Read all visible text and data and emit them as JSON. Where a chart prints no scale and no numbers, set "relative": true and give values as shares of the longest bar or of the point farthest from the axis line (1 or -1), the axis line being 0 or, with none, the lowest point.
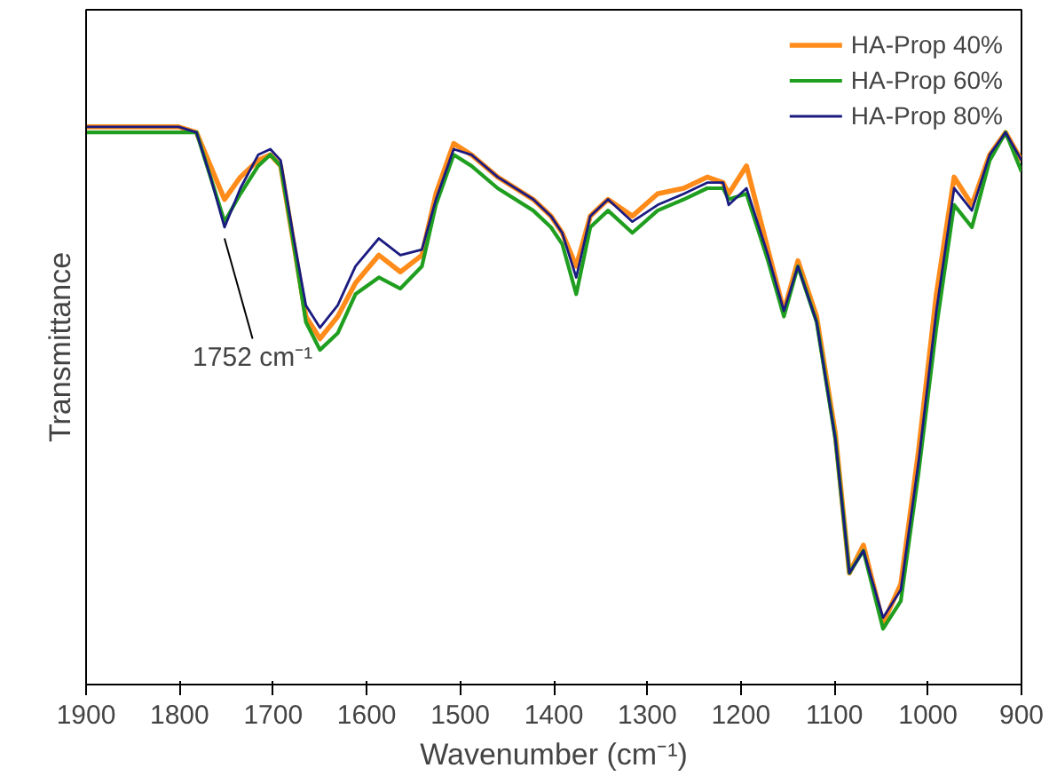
{
  "chart_data": {
    "type": "line",
    "relative": true,
    "xlabel": "Wavenumber (cm⁻¹)",
    "ylabel": "Transmittance",
    "x": [
      1900,
      1801,
      1782,
      1767,
      1752,
      1735,
      1716,
      1703,
      1692,
      1678,
      1665,
      1650,
      1631,
      1612,
      1587,
      1564,
      1541,
      1526,
      1507,
      1488,
      1460,
      1422,
      1403,
      1391,
      1376,
      1361,
      1342,
      1316,
      1289,
      1261,
      1236,
      1219,
      1213,
      1194,
      1171,
      1154,
      1139,
      1119,
      1099,
      1084,
      1069,
      1048,
      1029,
      1010,
      991,
      972,
      953,
      934,
      917,
      900
    ],
    "series": [
      {
        "name": "HA-Prop 40%",
        "color": "#ff8c1a",
        "values": [
          1,
          1,
          0.99,
          0.93,
          0.87,
          0.91,
          0.94,
          0.95,
          0.93,
          0.79,
          0.66,
          0.62,
          0.66,
          0.72,
          0.77,
          0.74,
          0.77,
          0.88,
          0.97,
          0.95,
          0.91,
          0.87,
          0.84,
          0.81,
          0.75,
          0.84,
          0.87,
          0.84,
          0.88,
          0.89,
          0.91,
          0.9,
          0.88,
          0.93,
          0.78,
          0.67,
          0.76,
          0.66,
          0.45,
          0.2,
          0.25,
          0.11,
          0.18,
          0.42,
          0.7,
          0.91,
          0.86,
          0.95,
          0.99,
          0.94
        ]
      },
      {
        "name": "HA-Prop 60%",
        "color": "#1f9e1f",
        "values": [
          0.99,
          0.99,
          0.99,
          0.91,
          0.83,
          0.88,
          0.93,
          0.95,
          0.93,
          0.79,
          0.65,
          0.6,
          0.63,
          0.7,
          0.73,
          0.71,
          0.75,
          0.86,
          0.95,
          0.93,
          0.89,
          0.85,
          0.82,
          0.79,
          0.7,
          0.82,
          0.85,
          0.81,
          0.85,
          0.87,
          0.89,
          0.89,
          0.87,
          0.88,
          0.76,
          0.66,
          0.75,
          0.65,
          0.44,
          0.2,
          0.24,
          0.1,
          0.15,
          0.38,
          0.64,
          0.86,
          0.82,
          0.94,
          0.99,
          0.92
        ]
      },
      {
        "name": "HA-Prop 80%",
        "color": "#1a1a80",
        "values": [
          1,
          1,
          0.99,
          0.91,
          0.82,
          0.89,
          0.95,
          0.96,
          0.94,
          0.8,
          0.68,
          0.64,
          0.68,
          0.75,
          0.8,
          0.77,
          0.78,
          0.87,
          0.96,
          0.95,
          0.91,
          0.87,
          0.84,
          0.81,
          0.73,
          0.84,
          0.87,
          0.83,
          0.86,
          0.88,
          0.9,
          0.9,
          0.86,
          0.89,
          0.77,
          0.67,
          0.75,
          0.65,
          0.44,
          0.2,
          0.24,
          0.12,
          0.17,
          0.4,
          0.67,
          0.89,
          0.85,
          0.95,
          0.99,
          0.94
        ]
      }
    ],
    "annotations": [
      {
        "text": "1752 cm⁻¹",
        "x": 1752,
        "y": 0.82
      }
    ],
    "xlim": [
      1900,
      900
    ],
    "xticks": [
      1900,
      1800,
      1700,
      1600,
      1500,
      1400,
      1300,
      1200,
      1100,
      1000,
      900
    ],
    "tick_labels": "x",
    "grid": false,
    "legend": "top right",
    "marker": "none",
    "line_style": "solid"
  }
}
